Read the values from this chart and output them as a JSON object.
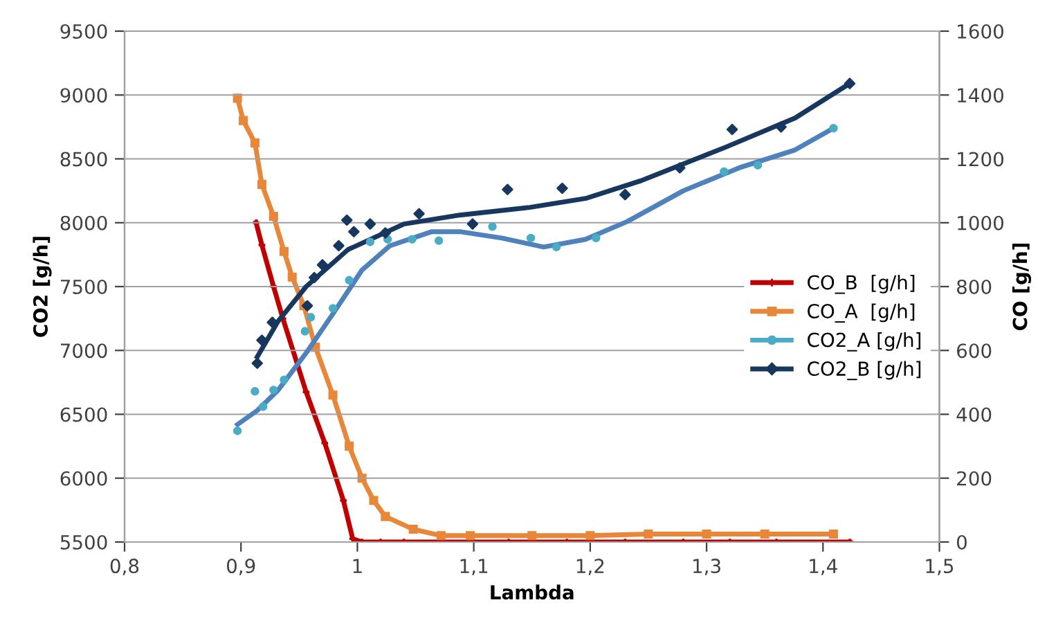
{
  "chart_data": {
    "type": "line",
    "xlabel": "Lambda",
    "ylabel": "CO2 [g/h]",
    "y2label": "CO [g/h]",
    "xlim": [
      0.8,
      1.5
    ],
    "xticks": [
      {
        "value": 0.8,
        "label": "0,8"
      },
      {
        "value": 0.9,
        "label": "0,9"
      },
      {
        "value": 1.0,
        "label": "1"
      },
      {
        "value": 1.1,
        "label": "1,1"
      },
      {
        "value": 1.2,
        "label": "1,2"
      },
      {
        "value": 1.3,
        "label": "1,3"
      },
      {
        "value": 1.4,
        "label": "1,4"
      },
      {
        "value": 1.5,
        "label": "1,5"
      }
    ],
    "ylim": [
      5500,
      9500
    ],
    "yticks": [
      5500,
      6000,
      6500,
      7000,
      7500,
      8000,
      8500,
      9000,
      9500
    ],
    "y2lim": [
      0,
      1600
    ],
    "y2ticks": [
      0,
      200,
      400,
      600,
      800,
      1000,
      1200,
      1400,
      1600
    ],
    "grid": "y",
    "legend": "right",
    "series": [
      {
        "name": "CO_B  [g/h]",
        "axis": "y2",
        "color": "#c00000",
        "marker": "cross",
        "x": [
          0.913,
          0.918,
          0.928,
          0.936,
          0.956,
          0.972,
          0.988,
          0.996,
          1.004,
          1.02,
          1.04,
          1.07,
          1.1,
          1.13,
          1.18,
          1.23,
          1.28,
          1.32,
          1.36,
          1.423
        ],
        "values": [
          1000,
          930,
          800,
          700,
          470,
          310,
          130,
          10,
          0,
          0,
          0,
          0,
          0,
          0,
          0,
          0,
          0,
          0,
          0,
          0
        ]
      },
      {
        "name": "CO_A  [g/h]",
        "axis": "y2",
        "color": "#e8873a",
        "marker": "square",
        "x": [
          0.897,
          0.902,
          0.912,
          0.918,
          0.928,
          0.937,
          0.944,
          0.954,
          0.964,
          0.979,
          0.993,
          1.004,
          1.014,
          1.024,
          1.048,
          1.072,
          1.097,
          1.15,
          1.2,
          1.25,
          1.3,
          1.35,
          1.409
        ],
        "values": [
          1390,
          1320,
          1250,
          1120,
          1020,
          910,
          830,
          740,
          610,
          460,
          300,
          200,
          130,
          80,
          40,
          20,
          20,
          20,
          20,
          25,
          25,
          25,
          25
        ]
      },
      {
        "name": "CO2_A [g/h]",
        "type": "scatter",
        "color": "#4bacc6",
        "marker": "circle",
        "x": [
          0.897,
          0.912,
          0.919,
          0.928,
          0.937,
          0.955,
          0.96,
          0.979,
          0.993,
          1.011,
          1.026,
          1.047,
          1.07,
          1.116,
          1.149,
          1.171,
          1.205,
          1.315,
          1.344,
          1.409
        ],
        "values": [
          6370,
          6680,
          6560,
          6690,
          6770,
          7150,
          7260,
          7330,
          7550,
          7850,
          7870,
          7870,
          7860,
          7970,
          7880,
          7810,
          7880,
          8400,
          8450,
          8740
        ]
      },
      {
        "name": "CO2_B [g/h]",
        "type": "scatter",
        "color": "#17375e",
        "marker": "diamond",
        "x": [
          0.914,
          0.918,
          0.927,
          0.957,
          0.963,
          0.97,
          0.984,
          0.991,
          0.997,
          1.011,
          1.024,
          1.053,
          1.099,
          1.129,
          1.176,
          1.23,
          1.277,
          1.322,
          1.364,
          1.423
        ],
        "values": [
          6900,
          7080,
          7220,
          7350,
          7570,
          7670,
          7820,
          8020,
          7930,
          7990,
          7920,
          8070,
          7990,
          8260,
          8270,
          8220,
          8430,
          8730,
          8750,
          9090
        ]
      },
      {
        "color": "#4f81bd",
        "x": [
          0.897,
          0.914,
          0.932,
          0.956,
          0.98,
          1.004,
          1.028,
          1.064,
          1.088,
          1.124,
          1.16,
          1.196,
          1.232,
          1.28,
          1.328,
          1.376,
          1.409
        ],
        "values": [
          6420,
          6530,
          6690,
          6980,
          7300,
          7630,
          7820,
          7930,
          7930,
          7880,
          7810,
          7870,
          8010,
          8250,
          8430,
          8570,
          8740
        ]
      },
      {
        "color": "#17375e",
        "x": [
          0.914,
          0.932,
          0.956,
          0.992,
          1.04,
          1.088,
          1.148,
          1.196,
          1.244,
          1.316,
          1.376,
          1.423
        ],
        "values": [
          6950,
          7230,
          7500,
          7790,
          7990,
          8060,
          8120,
          8190,
          8330,
          8590,
          8820,
          9090
        ]
      }
    ]
  }
}
